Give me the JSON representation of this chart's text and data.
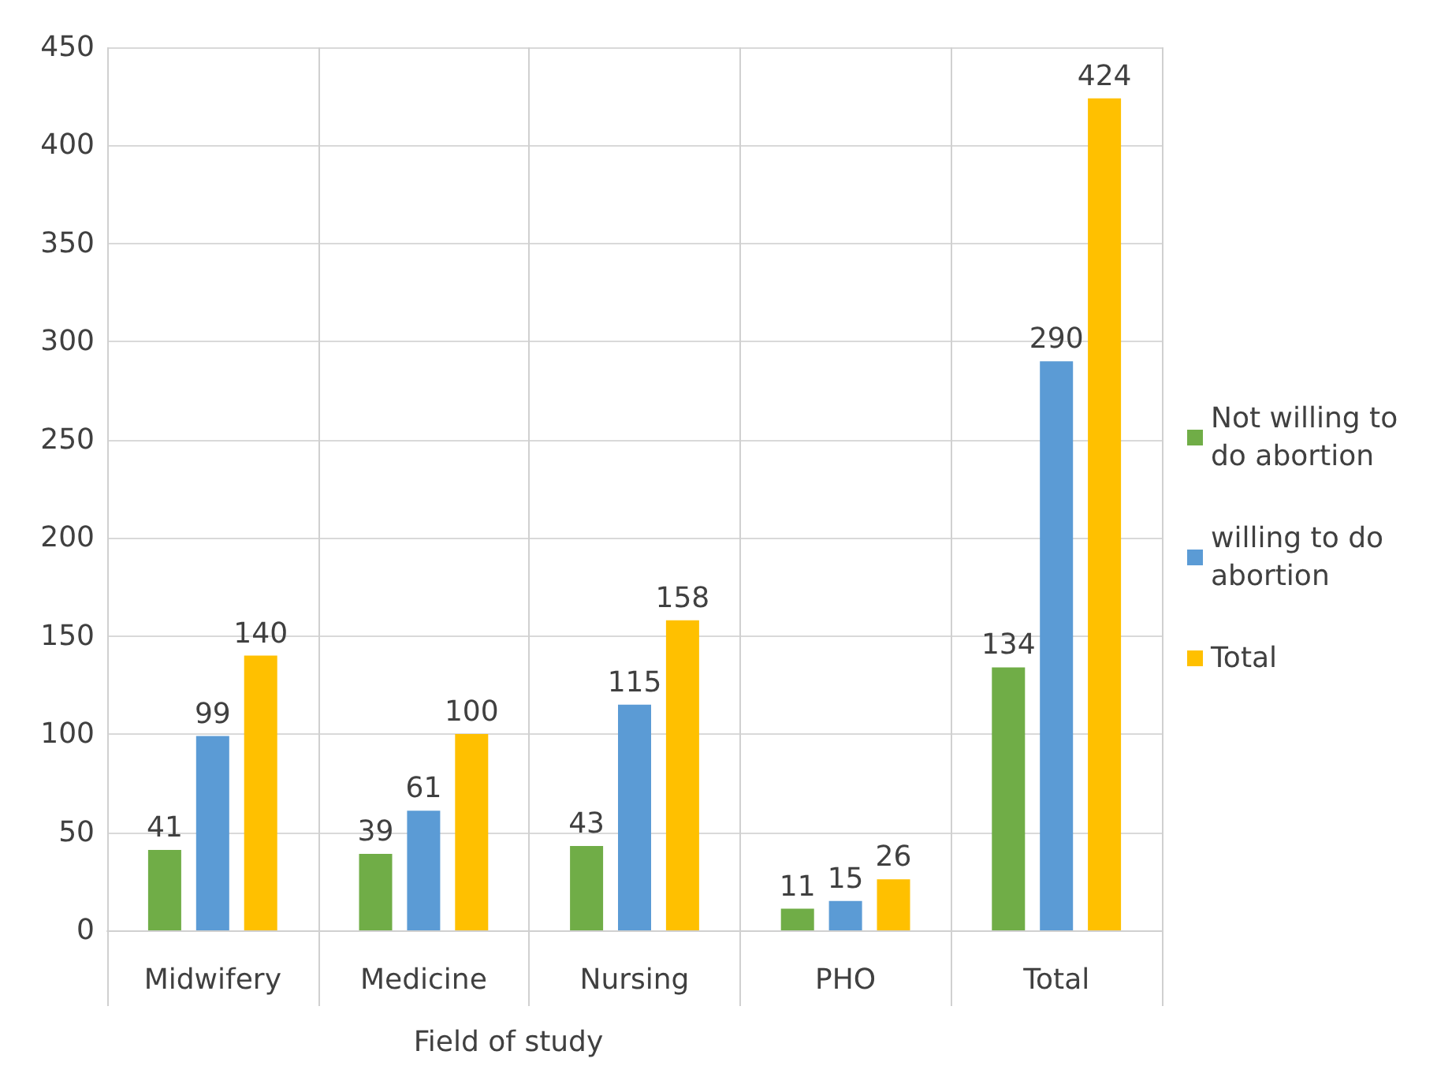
{
  "chart_data": {
    "type": "bar",
    "xlabel": "Field of study",
    "categories": [
      "Midwifery",
      "Medicine",
      "Nursing",
      "PHO",
      "Total"
    ],
    "series": [
      {
        "name": "Not willing to do abortion",
        "color": "#70ad47",
        "values": [
          41,
          39,
          43,
          11,
          134
        ]
      },
      {
        "name": "willing to do abortion",
        "color": "#5b9bd5",
        "values": [
          99,
          61,
          115,
          15,
          290
        ]
      },
      {
        "name": "Total",
        "color": "#ffc000",
        "values": [
          140,
          100,
          158,
          26,
          424
        ]
      }
    ],
    "ylim": [
      0,
      450
    ],
    "yticks": [
      0,
      50,
      100,
      150,
      200,
      250,
      300,
      350,
      400,
      450
    ],
    "grid": true,
    "legend": "right",
    "data_labels": true
  }
}
